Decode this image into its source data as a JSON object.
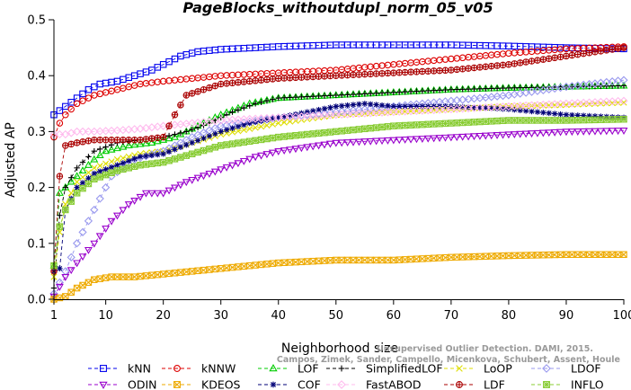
{
  "chart_data": {
    "type": "line",
    "title": "PageBlocks_withoutdupl_norm_05_v05",
    "xlabel": "Neighborhood size",
    "ylabel": "Adjusted AP",
    "xlim": [
      1,
      100
    ],
    "ylim": [
      0,
      0.5
    ],
    "xticks": [
      1,
      10,
      20,
      30,
      40,
      50,
      60,
      70,
      80,
      90,
      100
    ],
    "yticks": [
      0.0,
      0.1,
      0.2,
      0.3,
      0.4,
      0.5
    ],
    "xtick_labels": [
      "1",
      "10",
      "20",
      "30",
      "40",
      "50",
      "60",
      "70",
      "80",
      "90",
      "100"
    ],
    "ytick_labels": [
      "0.0",
      "0.1",
      "0.2",
      "0.3",
      "0.4",
      "0.5"
    ],
    "grid": false,
    "legend_position": "bottom",
    "watermark": [
      "Unsupervised Outlier Detection. DAMI, 2015.",
      "Campos, Zimek, Sander, Campello, Micenkova, Schubert, Assent, Houle"
    ],
    "series": [
      {
        "name": "kNN",
        "color": "#0000ee",
        "marker": "square",
        "points": [
          [
            1,
            0.33
          ],
          [
            3,
            0.345
          ],
          [
            5,
            0.36
          ],
          [
            7,
            0.375
          ],
          [
            9,
            0.385
          ],
          [
            12,
            0.39
          ],
          [
            15,
            0.4
          ],
          [
            18,
            0.41
          ],
          [
            20,
            0.42
          ],
          [
            23,
            0.435
          ],
          [
            26,
            0.443
          ],
          [
            30,
            0.447
          ],
          [
            40,
            0.452
          ],
          [
            50,
            0.455
          ],
          [
            60,
            0.455
          ],
          [
            70,
            0.455
          ],
          [
            80,
            0.453
          ],
          [
            90,
            0.45
          ],
          [
            100,
            0.448
          ]
        ]
      },
      {
        "name": "kNNW",
        "color": "#dd0000",
        "marker": "circle",
        "points": [
          [
            1,
            0.29
          ],
          [
            2,
            0.315
          ],
          [
            3,
            0.33
          ],
          [
            5,
            0.35
          ],
          [
            8,
            0.365
          ],
          [
            12,
            0.375
          ],
          [
            16,
            0.385
          ],
          [
            20,
            0.39
          ],
          [
            25,
            0.395
          ],
          [
            30,
            0.4
          ],
          [
            40,
            0.405
          ],
          [
            50,
            0.41
          ],
          [
            60,
            0.42
          ],
          [
            70,
            0.43
          ],
          [
            80,
            0.44
          ],
          [
            90,
            0.448
          ],
          [
            100,
            0.452
          ]
        ]
      },
      {
        "name": "LOF",
        "color": "#00cc00",
        "marker": "triangle-up",
        "points": [
          [
            1,
            0.06
          ],
          [
            2,
            0.19
          ],
          [
            3,
            0.2
          ],
          [
            5,
            0.22
          ],
          [
            8,
            0.25
          ],
          [
            10,
            0.265
          ],
          [
            14,
            0.275
          ],
          [
            18,
            0.28
          ],
          [
            22,
            0.29
          ],
          [
            26,
            0.31
          ],
          [
            30,
            0.33
          ],
          [
            35,
            0.35
          ],
          [
            40,
            0.36
          ],
          [
            50,
            0.365
          ],
          [
            60,
            0.37
          ],
          [
            70,
            0.375
          ],
          [
            80,
            0.378
          ],
          [
            90,
            0.38
          ],
          [
            100,
            0.382
          ]
        ]
      },
      {
        "name": "SimplifiedLOF",
        "color": "#000000",
        "marker": "plus",
        "points": [
          [
            1,
            0.02
          ],
          [
            2,
            0.15
          ],
          [
            3,
            0.2
          ],
          [
            5,
            0.235
          ],
          [
            8,
            0.265
          ],
          [
            12,
            0.28
          ],
          [
            16,
            0.285
          ],
          [
            20,
            0.29
          ],
          [
            24,
            0.3
          ],
          [
            28,
            0.315
          ],
          [
            32,
            0.335
          ],
          [
            36,
            0.35
          ],
          [
            40,
            0.36
          ],
          [
            50,
            0.365
          ],
          [
            60,
            0.37
          ],
          [
            70,
            0.375
          ],
          [
            80,
            0.378
          ],
          [
            90,
            0.38
          ],
          [
            100,
            0.382
          ]
        ]
      },
      {
        "name": "LoOP",
        "color": "#dddd00",
        "marker": "x",
        "points": [
          [
            1,
            0.04
          ],
          [
            2,
            0.12
          ],
          [
            3,
            0.17
          ],
          [
            5,
            0.21
          ],
          [
            8,
            0.235
          ],
          [
            12,
            0.25
          ],
          [
            16,
            0.26
          ],
          [
            20,
            0.265
          ],
          [
            25,
            0.28
          ],
          [
            30,
            0.295
          ],
          [
            40,
            0.315
          ],
          [
            50,
            0.33
          ],
          [
            60,
            0.335
          ],
          [
            70,
            0.34
          ],
          [
            80,
            0.345
          ],
          [
            90,
            0.348
          ],
          [
            100,
            0.352
          ]
        ]
      },
      {
        "name": "LDOF",
        "color": "#9999ee",
        "marker": "diamond",
        "points": [
          [
            1,
            0.01
          ],
          [
            3,
            0.05
          ],
          [
            5,
            0.1
          ],
          [
            8,
            0.16
          ],
          [
            11,
            0.22
          ],
          [
            15,
            0.25
          ],
          [
            20,
            0.265
          ],
          [
            25,
            0.29
          ],
          [
            30,
            0.31
          ],
          [
            40,
            0.325
          ],
          [
            50,
            0.335
          ],
          [
            60,
            0.345
          ],
          [
            70,
            0.355
          ],
          [
            80,
            0.365
          ],
          [
            90,
            0.38
          ],
          [
            100,
            0.392
          ]
        ]
      },
      {
        "name": "ODIN",
        "color": "#9900cc",
        "marker": "triangle-down",
        "points": [
          [
            1,
            0.005
          ],
          [
            3,
            0.04
          ],
          [
            5,
            0.065
          ],
          [
            8,
            0.1
          ],
          [
            11,
            0.14
          ],
          [
            14,
            0.17
          ],
          [
            17,
            0.19
          ],
          [
            20,
            0.19
          ],
          [
            24,
            0.21
          ],
          [
            28,
            0.225
          ],
          [
            32,
            0.24
          ],
          [
            36,
            0.255
          ],
          [
            40,
            0.265
          ],
          [
            50,
            0.28
          ],
          [
            60,
            0.285
          ],
          [
            70,
            0.29
          ],
          [
            80,
            0.295
          ],
          [
            90,
            0.3
          ],
          [
            100,
            0.302
          ]
        ]
      },
      {
        "name": "KDEOS",
        "color": "#eeaa00",
        "marker": "square-x",
        "points": [
          [
            1,
            0.0
          ],
          [
            3,
            0.005
          ],
          [
            5,
            0.02
          ],
          [
            8,
            0.035
          ],
          [
            11,
            0.04
          ],
          [
            15,
            0.04
          ],
          [
            20,
            0.045
          ],
          [
            25,
            0.05
          ],
          [
            30,
            0.055
          ],
          [
            40,
            0.065
          ],
          [
            50,
            0.07
          ],
          [
            60,
            0.07
          ],
          [
            70,
            0.075
          ],
          [
            80,
            0.078
          ],
          [
            90,
            0.08
          ],
          [
            100,
            0.08
          ]
        ]
      },
      {
        "name": "COF",
        "color": "#000077",
        "marker": "asterisk",
        "points": [
          [
            1,
            0.05
          ],
          [
            2,
            0.055
          ],
          [
            3,
            0.16
          ],
          [
            5,
            0.2
          ],
          [
            8,
            0.225
          ],
          [
            12,
            0.24
          ],
          [
            16,
            0.255
          ],
          [
            20,
            0.26
          ],
          [
            25,
            0.28
          ],
          [
            30,
            0.3
          ],
          [
            35,
            0.315
          ],
          [
            40,
            0.325
          ],
          [
            45,
            0.335
          ],
          [
            50,
            0.345
          ],
          [
            55,
            0.35
          ],
          [
            60,
            0.345
          ],
          [
            70,
            0.345
          ],
          [
            80,
            0.34
          ],
          [
            90,
            0.33
          ],
          [
            100,
            0.325
          ]
        ]
      },
      {
        "name": "FastABOD",
        "color": "#ffbbee",
        "marker": "diamond",
        "points": [
          [
            1,
            0.295
          ],
          [
            3,
            0.295
          ],
          [
            5,
            0.3
          ],
          [
            8,
            0.3
          ],
          [
            12,
            0.302
          ],
          [
            16,
            0.305
          ],
          [
            20,
            0.31
          ],
          [
            25,
            0.315
          ],
          [
            30,
            0.32
          ],
          [
            40,
            0.325
          ],
          [
            50,
            0.33
          ],
          [
            60,
            0.335
          ],
          [
            70,
            0.34
          ],
          [
            80,
            0.345
          ],
          [
            90,
            0.35
          ],
          [
            100,
            0.355
          ]
        ]
      },
      {
        "name": "LDF",
        "color": "#aa0000",
        "marker": "circle-plus",
        "points": [
          [
            1,
            0.05
          ],
          [
            2,
            0.22
          ],
          [
            3,
            0.275
          ],
          [
            5,
            0.28
          ],
          [
            8,
            0.285
          ],
          [
            12,
            0.285
          ],
          [
            16,
            0.285
          ],
          [
            20,
            0.29
          ],
          [
            22,
            0.33
          ],
          [
            24,
            0.365
          ],
          [
            27,
            0.375
          ],
          [
            30,
            0.385
          ],
          [
            35,
            0.39
          ],
          [
            40,
            0.395
          ],
          [
            50,
            0.4
          ],
          [
            60,
            0.405
          ],
          [
            70,
            0.41
          ],
          [
            80,
            0.42
          ],
          [
            90,
            0.435
          ],
          [
            100,
            0.45
          ]
        ]
      },
      {
        "name": "INFLO",
        "color": "#88cc33",
        "marker": "square-cross",
        "points": [
          [
            1,
            0.06
          ],
          [
            2,
            0.13
          ],
          [
            3,
            0.16
          ],
          [
            5,
            0.19
          ],
          [
            8,
            0.215
          ],
          [
            12,
            0.23
          ],
          [
            16,
            0.24
          ],
          [
            20,
            0.245
          ],
          [
            25,
            0.26
          ],
          [
            30,
            0.275
          ],
          [
            40,
            0.29
          ],
          [
            50,
            0.3
          ],
          [
            60,
            0.31
          ],
          [
            70,
            0.315
          ],
          [
            80,
            0.32
          ],
          [
            90,
            0.32
          ],
          [
            100,
            0.322
          ]
        ]
      }
    ]
  }
}
